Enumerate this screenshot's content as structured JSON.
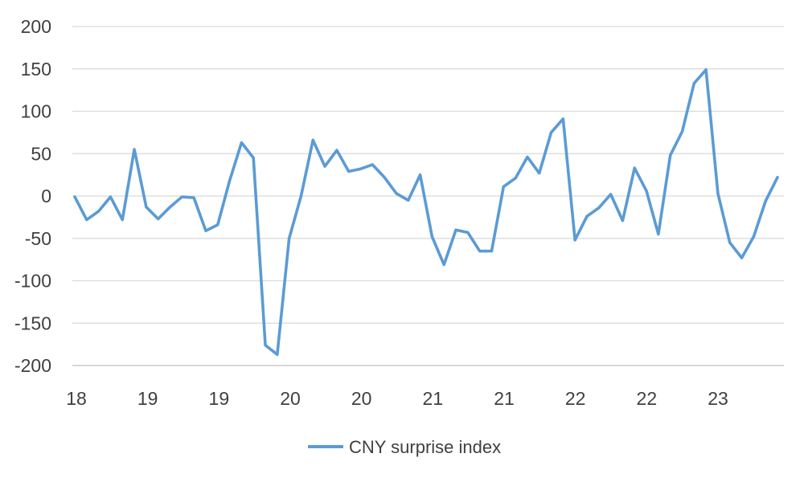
{
  "chart_data": {
    "type": "line",
    "x_tick_labels": [
      "18",
      "19",
      "19",
      "20",
      "20",
      "21",
      "21",
      "22",
      "22",
      "23"
    ],
    "ylim": [
      -200,
      200
    ],
    "y_ticks": [
      200,
      150,
      100,
      50,
      0,
      -50,
      -100,
      -150,
      -200
    ],
    "grid": "horizontal",
    "legend_position": "bottom",
    "series": [
      {
        "name": "CNY surprise index",
        "color": "#5B9BD5",
        "values": [
          -1,
          -28,
          -18,
          -1,
          -28,
          55,
          -13,
          -27,
          -13,
          -1,
          -2,
          -41,
          -34,
          18,
          63,
          45,
          -176,
          -187,
          -50,
          0,
          66,
          35,
          54,
          29,
          32,
          37,
          22,
          3,
          -5,
          25,
          -48,
          -81,
          -40,
          -43,
          -65,
          -65,
          11,
          21,
          46,
          27,
          75,
          91,
          -52,
          -24,
          -14,
          2,
          -29,
          33,
          6,
          -45,
          48,
          76,
          133,
          149,
          3,
          -55,
          -73,
          -48,
          -6,
          22
        ]
      }
    ]
  }
}
